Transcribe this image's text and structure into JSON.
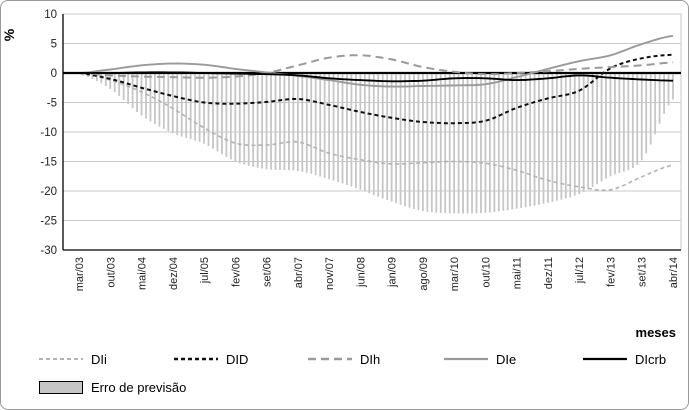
{
  "figure": {
    "y_axis_label": "%",
    "x_axis_label": "meses",
    "colors": {
      "grid": "#c9c9c9",
      "axis": "#000000",
      "zero_line": "#000000",
      "tick_text": "#222222",
      "error_fill": "#c6c6c6",
      "border": "#999999"
    }
  },
  "chart_data": {
    "type": "line",
    "title": "",
    "xlabel": "meses",
    "ylabel": "%",
    "ylim": [
      -30,
      10
    ],
    "y_ticks": [
      10,
      5,
      0,
      -5,
      -10,
      -15,
      -20,
      -25,
      -30
    ],
    "grid": true,
    "legend_position": "bottom",
    "x_tick_interval_months": 7,
    "categories": [
      "mar/03",
      "out/03",
      "mai/04",
      "dez/04",
      "jul/05",
      "fev/06",
      "set/06",
      "abr/07",
      "nov/07",
      "jun/08",
      "jan/09",
      "ago/09",
      "mar/10",
      "out/10",
      "mai/11",
      "dez/11",
      "jul/12",
      "fev/13",
      "set/13",
      "abr/14"
    ],
    "series": [
      {
        "name": "DIi",
        "style": "dashed",
        "dash": "4 3",
        "width": 1.6,
        "color": "#b3b3b3",
        "values": [
          0,
          -1.2,
          -3.2,
          -6.0,
          -9.3,
          -11.9,
          -12.2,
          -11.7,
          -13.6,
          -14.7,
          -15.4,
          -15.2,
          -15.0,
          -15.3,
          -16.5,
          -18.2,
          -19.3,
          -19.8,
          -17.6,
          -15.6
        ]
      },
      {
        "name": "DID",
        "style": "dashed",
        "dash": "4 3",
        "width": 2,
        "color": "#111111",
        "values": [
          0,
          -1.0,
          -2.5,
          -3.9,
          -5.0,
          -5.2,
          -4.9,
          -4.4,
          -5.4,
          -6.6,
          -7.6,
          -8.3,
          -8.5,
          -8.1,
          -5.9,
          -4.3,
          -3.0,
          0.8,
          2.5,
          3.1
        ]
      },
      {
        "name": "DIh",
        "style": "dashed",
        "dash": "8 5",
        "width": 2,
        "color": "#9a9a9a",
        "values": [
          0,
          -0.4,
          -0.6,
          -0.7,
          -0.8,
          -0.6,
          0.0,
          1.3,
          2.6,
          3.0,
          2.3,
          1.0,
          0.2,
          -0.2,
          0.0,
          0.3,
          0.7,
          1.0,
          1.3,
          1.8
        ]
      },
      {
        "name": "DIe",
        "style": "solid",
        "dash": "",
        "width": 1.9,
        "color": "#9a9a9a",
        "values": [
          0,
          0.6,
          1.3,
          1.6,
          1.4,
          0.7,
          0.1,
          -0.5,
          -1.2,
          -2.0,
          -2.3,
          -2.2,
          -2.1,
          -1.9,
          -0.7,
          0.7,
          2.0,
          3.0,
          4.9,
          6.3
        ]
      },
      {
        "name": "DIcrb",
        "style": "solid",
        "dash": "",
        "width": 1.9,
        "color": "#000000",
        "values": [
          0,
          0.0,
          0.1,
          0.1,
          0.0,
          -0.1,
          -0.2,
          -0.4,
          -0.9,
          -1.2,
          -1.4,
          -1.3,
          -0.9,
          -0.9,
          -1.2,
          -0.9,
          -0.4,
          -0.8,
          -1.1,
          -1.3
        ]
      }
    ],
    "error_band": {
      "name": "Erro de previsão",
      "type": "vertical-bars-from-zero",
      "values": [
        -0.2,
        -2.7,
        -7.2,
        -10.2,
        -12.0,
        -15.0,
        -16.3,
        -16.6,
        -18.0,
        -19.8,
        -21.8,
        -23.4,
        -23.8,
        -23.7,
        -23.0,
        -22.0,
        -20.5,
        -17.5,
        -14.8,
        -4.5
      ]
    }
  },
  "legend": {
    "items": [
      {
        "label": "DIi"
      },
      {
        "label": "DID"
      },
      {
        "label": "DIh"
      },
      {
        "label": "DIe"
      },
      {
        "label": "DIcrb"
      }
    ],
    "error_label": "Erro de previsão"
  }
}
